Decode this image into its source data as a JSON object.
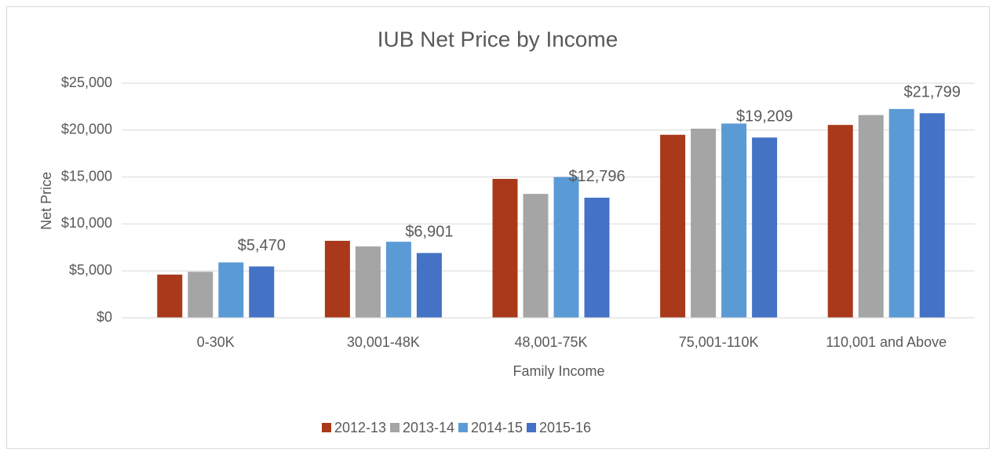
{
  "chart_data": {
    "type": "bar",
    "title": "IUB Net Price by Income",
    "x_label": "Family Income",
    "y_label": "Net Price",
    "categories": [
      "0-30K",
      "30,001-48K",
      "48,001-75K",
      "75,001-110K",
      "110,001 and Above"
    ],
    "series": [
      {
        "name": "2012-13",
        "color": "#a9391a",
        "values": [
          4600,
          8200,
          14800,
          19500,
          20550
        ]
      },
      {
        "name": "2013-14",
        "color": "#a5a5a5",
        "values": [
          4900,
          7600,
          13200,
          20150,
          21600
        ]
      },
      {
        "name": "2014-15",
        "color": "#5b9bd5",
        "values": [
          5900,
          8100,
          15000,
          20700,
          22250
        ]
      },
      {
        "name": "2015-16",
        "color": "#4472c4",
        "values": [
          5470,
          6901,
          12796,
          19209,
          21799
        ],
        "value_labels": [
          "$5,470",
          "$6,901",
          "$12,796",
          "$19,209",
          "$21,799"
        ]
      }
    ],
    "ylim": [
      0,
      25000
    ],
    "yticks": [
      {
        "value": 0,
        "label": "$0"
      },
      {
        "value": 5000,
        "label": "$5,000"
      },
      {
        "value": 10000,
        "label": "$10,000"
      },
      {
        "value": 15000,
        "label": "$15,000"
      },
      {
        "value": 20000,
        "label": "$20,000"
      },
      {
        "value": 25000,
        "label": "$25,000"
      }
    ],
    "grid": true,
    "legend": "bottom"
  }
}
